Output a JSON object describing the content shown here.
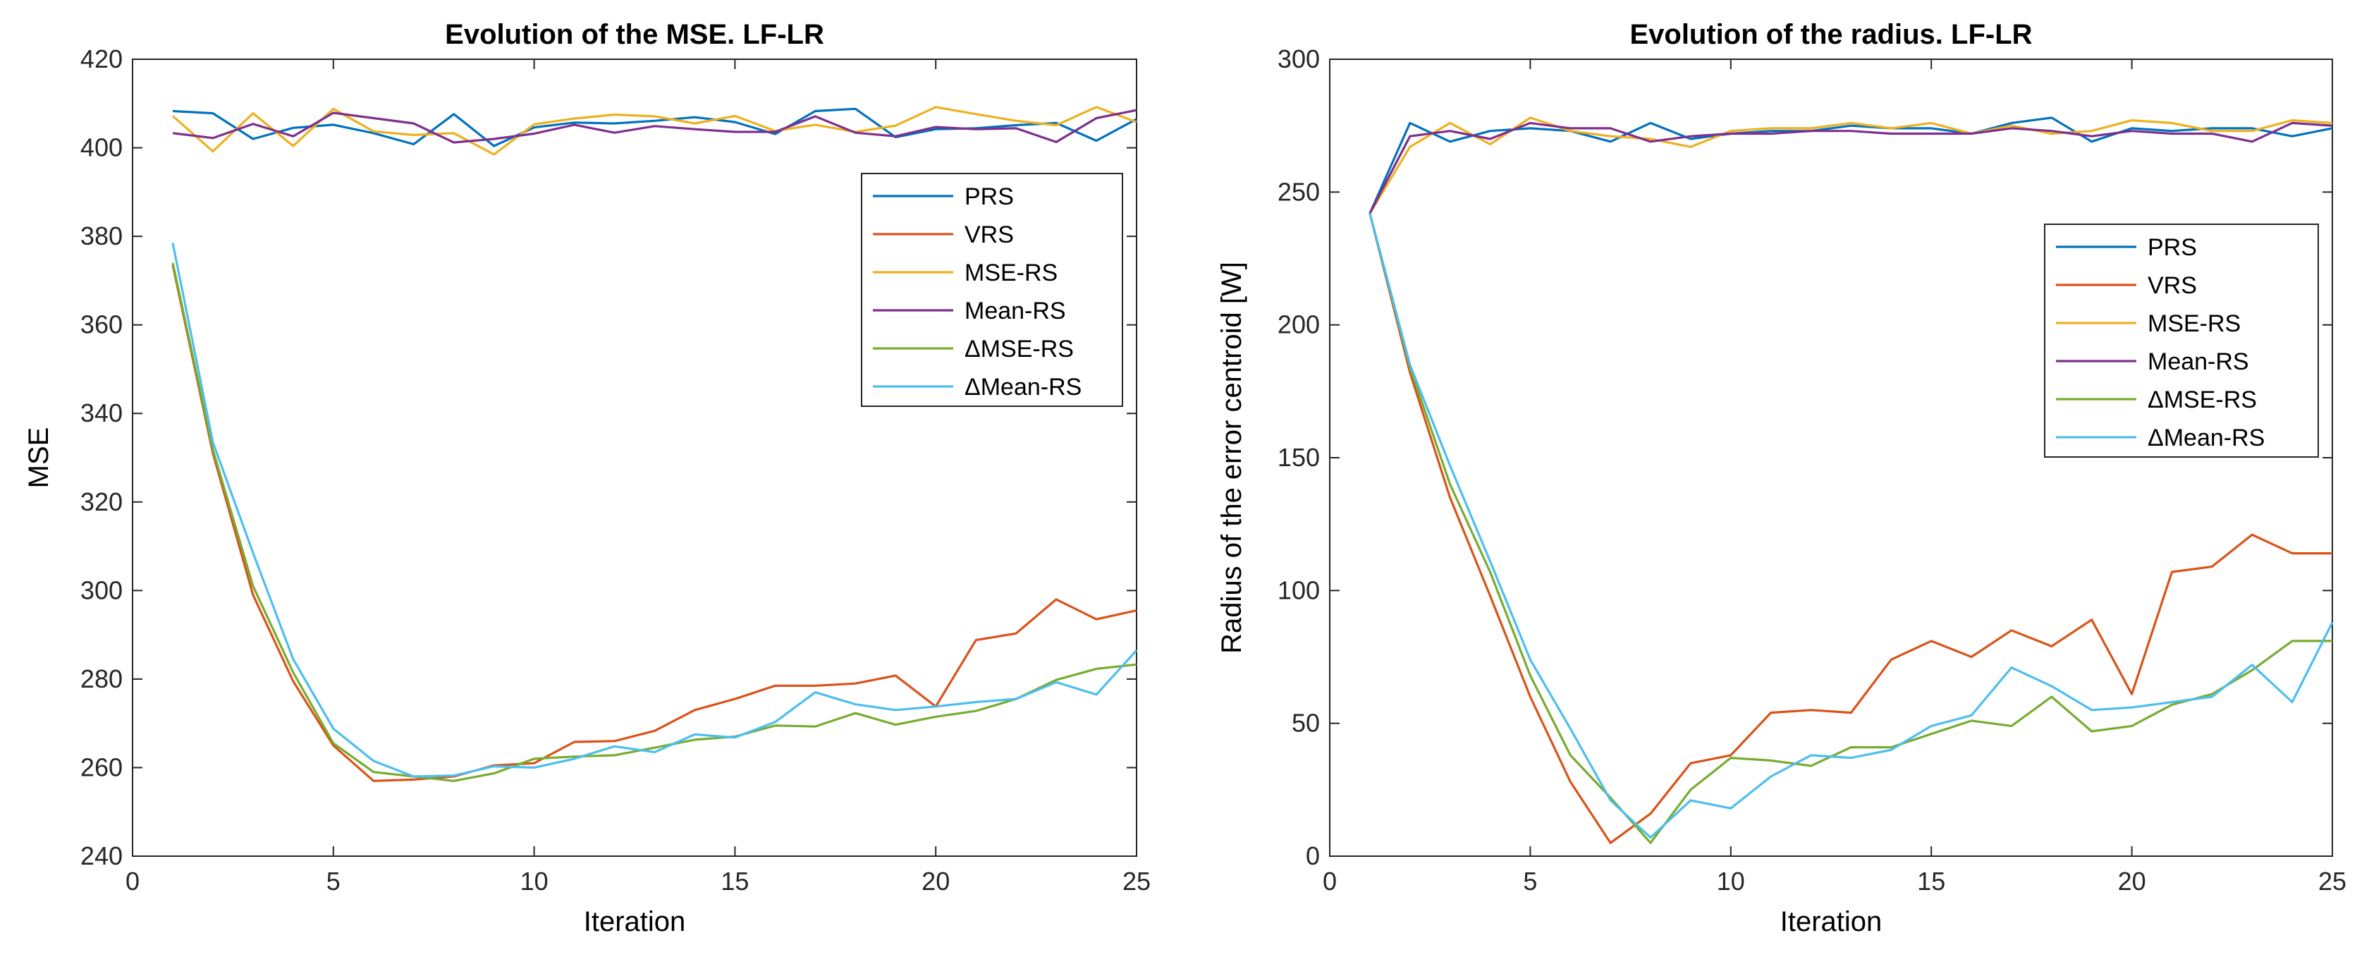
{
  "colors": {
    "PRS": "#0072BD",
    "VRS": "#D95319",
    "MSE-RS": "#EDB120",
    "Mean-RS": "#7E2F8E",
    "ΔMSE-RS": "#77AC30",
    "ΔMean-RS": "#4DBEEE"
  },
  "chart_data": [
    {
      "type": "line",
      "title": "Evolution of the MSE. LF-LR",
      "xlabel": "Iteration",
      "ylabel": "MSE",
      "xlim": [
        0,
        25
      ],
      "ylim": [
        240,
        420
      ],
      "xticks": [
        0,
        5,
        10,
        15,
        20,
        25
      ],
      "yticks": [
        240,
        260,
        280,
        300,
        320,
        340,
        360,
        380,
        400,
        420
      ],
      "legend_position": "upper-right",
      "x": [
        1,
        2,
        3,
        4,
        5,
        6,
        7,
        8,
        9,
        10,
        11,
        12,
        13,
        14,
        15,
        16,
        17,
        18,
        19,
        20,
        21,
        22,
        23,
        24,
        25
      ],
      "series": [
        {
          "name": "PRS",
          "values": [
            408.3,
            407.8,
            402.0,
            404.5,
            405.2,
            403.3,
            400.8,
            407.6,
            400.4,
            404.6,
            405.7,
            405.5,
            406.1,
            406.9,
            405.8,
            403.1,
            408.3,
            408.8,
            402.4,
            404.2,
            404.4,
            405.1,
            405.6,
            401.6,
            406.5
          ]
        },
        {
          "name": "VRS",
          "values": [
            373.5,
            331.0,
            299.0,
            279.5,
            265.0,
            257.0,
            257.3,
            258.0,
            260.5,
            261.0,
            265.8,
            266.0,
            268.3,
            273.0,
            275.5,
            278.5,
            278.5,
            279.0,
            280.8,
            273.8,
            288.8,
            290.3,
            298.0,
            293.5,
            295.5
          ]
        },
        {
          "name": "MSE-RS",
          "values": [
            407.2,
            399.2,
            407.8,
            400.4,
            408.8,
            403.7,
            402.9,
            403.3,
            398.5,
            405.3,
            406.6,
            407.5,
            407.1,
            405.5,
            407.2,
            403.8,
            405.2,
            403.6,
            405.0,
            409.2,
            407.6,
            406.1,
            405.1,
            409.2,
            405.8
          ]
        },
        {
          "name": "Mean-RS",
          "values": [
            403.3,
            402.2,
            405.4,
            402.6,
            407.9,
            406.7,
            405.5,
            401.2,
            402.0,
            403.2,
            405.2,
            403.4,
            404.9,
            404.2,
            403.6,
            403.6,
            407.1,
            403.4,
            402.6,
            404.7,
            404.2,
            404.4,
            401.3,
            406.7,
            408.5
          ]
        },
        {
          "name": "ΔMSE-RS",
          "values": [
            374.0,
            331.8,
            301.0,
            281.5,
            265.5,
            259.0,
            258.0,
            257.0,
            258.7,
            262.0,
            262.5,
            262.8,
            264.5,
            266.3,
            267.0,
            269.5,
            269.3,
            272.3,
            269.7,
            271.5,
            272.8,
            275.5,
            279.8,
            282.3,
            283.3
          ]
        },
        {
          "name": "ΔMean-RS",
          "values": [
            378.5,
            333.5,
            308.5,
            284.5,
            268.8,
            261.5,
            258.0,
            258.2,
            260.3,
            260.0,
            262.0,
            264.8,
            263.5,
            267.5,
            266.8,
            270.3,
            277.0,
            274.3,
            273.0,
            273.8,
            274.8,
            275.5,
            279.3,
            276.5,
            286.5
          ]
        }
      ]
    },
    {
      "type": "line",
      "title": "Evolution of the radius. LF-LR",
      "xlabel": "Iteration",
      "ylabel": "Radius of the error centroid [W]",
      "xlim": [
        0,
        25
      ],
      "ylim": [
        0,
        300
      ],
      "xticks": [
        0,
        5,
        10,
        15,
        20,
        25
      ],
      "yticks": [
        0,
        50,
        100,
        150,
        200,
        250,
        300
      ],
      "legend_position": "upper-right",
      "x": [
        1,
        2,
        3,
        4,
        5,
        6,
        7,
        8,
        9,
        10,
        11,
        12,
        13,
        14,
        15,
        16,
        17,
        18,
        19,
        20,
        21,
        22,
        23,
        24,
        25
      ],
      "series": [
        {
          "name": "PRS",
          "values": [
            242,
            276,
            269,
            273,
            274,
            273,
            269,
            276,
            270,
            272,
            273,
            273,
            275,
            274,
            274,
            272,
            276,
            278,
            269,
            274,
            273,
            274,
            274,
            271,
            274
          ]
        },
        {
          "name": "VRS",
          "values": [
            242,
            182,
            135,
            98,
            60,
            28,
            5,
            16,
            35,
            38,
            54,
            55,
            54,
            74,
            81,
            75,
            85,
            79,
            89,
            61,
            107,
            109,
            121,
            114,
            114
          ]
        },
        {
          "name": "MSE-RS",
          "values": [
            242,
            267,
            276,
            268,
            278,
            273,
            271,
            270,
            267,
            273,
            274,
            274,
            276,
            274,
            276,
            272,
            275,
            272,
            273,
            277,
            276,
            273,
            273,
            277,
            276
          ]
        },
        {
          "name": "Mean-RS",
          "values": [
            242,
            271,
            273,
            270,
            276,
            274,
            274,
            269,
            271,
            272,
            272,
            273,
            273,
            272,
            272,
            272,
            274,
            273,
            271,
            273,
            272,
            272,
            269,
            276,
            275
          ]
        },
        {
          "name": "ΔMSE-RS",
          "values": [
            242,
            184,
            140,
            107,
            68,
            38,
            22,
            5,
            25,
            37,
            36,
            34,
            41,
            41,
            46,
            51,
            49,
            60,
            47,
            49,
            57,
            61,
            70,
            81,
            81
          ]
        },
        {
          "name": "ΔMean-RS",
          "values": [
            242,
            185,
            147,
            111,
            74,
            48,
            21,
            7,
            21,
            18,
            30,
            38,
            37,
            40,
            49,
            53,
            71,
            64,
            55,
            56,
            58,
            60,
            72,
            58,
            88
          ]
        }
      ]
    }
  ]
}
